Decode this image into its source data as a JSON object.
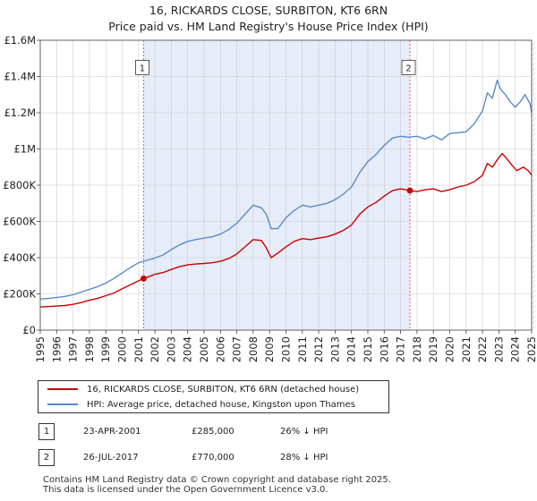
{
  "title": "16, RICKARDS CLOSE, SURBITON, KT6 6RN",
  "subtitle": "Price paid vs. HM Land Registry's House Price Index (HPI)",
  "chart_data": {
    "type": "line",
    "xlim": [
      1995,
      2025
    ],
    "ylim": [
      0,
      1600000
    ],
    "x_ticks": [
      "1995",
      "1996",
      "1997",
      "1998",
      "1999",
      "2000",
      "2001",
      "2002",
      "2003",
      "2004",
      "2005",
      "2006",
      "2007",
      "2008",
      "2009",
      "2010",
      "2011",
      "2012",
      "2013",
      "2014",
      "2015",
      "2016",
      "2017",
      "2018",
      "2019",
      "2020",
      "2021",
      "2022",
      "2023",
      "2024",
      "2025"
    ],
    "y_ticks": [
      {
        "value": 0,
        "label": "£0"
      },
      {
        "value": 200000,
        "label": "£200K"
      },
      {
        "value": 400000,
        "label": "£400K"
      },
      {
        "value": 600000,
        "label": "£600K"
      },
      {
        "value": 800000,
        "label": "£800K"
      },
      {
        "value": 1000000,
        "label": "£1M"
      },
      {
        "value": 1200000,
        "label": "£1.2M"
      },
      {
        "value": 1400000,
        "label": "£1.4M"
      },
      {
        "value": 1600000,
        "label": "£1.6M"
      }
    ],
    "grid": true,
    "shaded_ranges": [
      [
        2001.31,
        2017.57
      ]
    ],
    "future_hatch_from": 2025.0,
    "series": [
      {
        "name": "16, RICKARDS CLOSE, SURBITON, KT6 6RN (detached house)",
        "color": "#cc0000",
        "x": [
          1995.0,
          1995.5,
          1996.0,
          1996.5,
          1997.0,
          1997.5,
          1998.0,
          1998.5,
          1999.0,
          1999.5,
          2000.0,
          2000.5,
          2001.0,
          2001.31,
          2001.7,
          2002.0,
          2002.5,
          2003.0,
          2003.5,
          2004.0,
          2004.5,
          2005.0,
          2005.5,
          2006.0,
          2006.5,
          2007.0,
          2007.5,
          2008.0,
          2008.5,
          2008.8,
          2009.1,
          2009.5,
          2010.0,
          2010.5,
          2011.0,
          2011.5,
          2012.0,
          2012.5,
          2013.0,
          2013.5,
          2014.0,
          2014.5,
          2015.0,
          2015.5,
          2016.0,
          2016.5,
          2017.0,
          2017.3,
          2017.57,
          2018.0,
          2018.5,
          2019.0,
          2019.5,
          2020.0,
          2020.5,
          2021.0,
          2021.5,
          2022.0,
          2022.3,
          2022.6,
          2022.9,
          2023.2,
          2023.5,
          2023.8,
          2024.1,
          2024.5,
          2024.8,
          2025.0
        ],
        "values": [
          128000,
          130000,
          133000,
          136000,
          142000,
          152000,
          165000,
          175000,
          190000,
          205000,
          228000,
          250000,
          272000,
          285000,
          298000,
          308000,
          318000,
          335000,
          350000,
          360000,
          365000,
          368000,
          372000,
          380000,
          395000,
          420000,
          460000,
          500000,
          495000,
          455000,
          400000,
          425000,
          460000,
          490000,
          505000,
          500000,
          508000,
          515000,
          530000,
          550000,
          580000,
          640000,
          680000,
          705000,
          740000,
          770000,
          780000,
          775000,
          770000,
          765000,
          775000,
          780000,
          765000,
          775000,
          790000,
          800000,
          820000,
          855000,
          920000,
          900000,
          940000,
          975000,
          945000,
          910000,
          880000,
          900000,
          880000,
          855000
        ]
      },
      {
        "name": "HPI: Average price, detached house, Kingston upon Thames",
        "color": "#5b8ac9",
        "x": [
          1995.0,
          1995.5,
          1996.0,
          1996.5,
          1997.0,
          1997.5,
          1998.0,
          1998.5,
          1999.0,
          1999.5,
          2000.0,
          2000.5,
          2001.0,
          2001.5,
          2002.0,
          2002.5,
          2003.0,
          2003.5,
          2004.0,
          2004.5,
          2005.0,
          2005.5,
          2006.0,
          2006.5,
          2007.0,
          2007.5,
          2008.0,
          2008.5,
          2008.8,
          2009.1,
          2009.5,
          2010.0,
          2010.5,
          2011.0,
          2011.5,
          2012.0,
          2012.5,
          2013.0,
          2013.5,
          2014.0,
          2014.5,
          2015.0,
          2015.5,
          2016.0,
          2016.5,
          2017.0,
          2017.5,
          2018.0,
          2018.5,
          2019.0,
          2019.5,
          2020.0,
          2020.5,
          2021.0,
          2021.5,
          2022.0,
          2022.3,
          2022.6,
          2022.9,
          2023.1,
          2023.4,
          2023.7,
          2024.0,
          2024.3,
          2024.6,
          2024.9,
          2025.0
        ],
        "values": [
          172000,
          175000,
          180000,
          186000,
          195000,
          210000,
          225000,
          240000,
          260000,
          285000,
          315000,
          345000,
          372000,
          385000,
          398000,
          415000,
          445000,
          470000,
          490000,
          500000,
          508000,
          515000,
          530000,
          555000,
          590000,
          640000,
          690000,
          675000,
          640000,
          560000,
          560000,
          620000,
          660000,
          690000,
          680000,
          690000,
          700000,
          720000,
          750000,
          790000,
          870000,
          930000,
          970000,
          1020000,
          1060000,
          1070000,
          1065000,
          1070000,
          1055000,
          1075000,
          1050000,
          1085000,
          1090000,
          1095000,
          1140000,
          1210000,
          1310000,
          1280000,
          1380000,
          1330000,
          1300000,
          1260000,
          1230000,
          1260000,
          1300000,
          1250000,
          1200000
        ]
      }
    ],
    "transactions": [
      {
        "marker": "1",
        "x": 2001.31,
        "value": 285000,
        "date": "23-APR-2001",
        "price": "£285,000",
        "hpi_diff": "26% ↓ HPI"
      },
      {
        "marker": "2",
        "x": 2017.57,
        "value": 770000,
        "date": "26-JUL-2017",
        "price": "£770,000",
        "hpi_diff": "28% ↓ HPI"
      }
    ]
  },
  "legend": {
    "property_label": "16, RICKARDS CLOSE, SURBITON, KT6 6RN (detached house)",
    "hpi_label": "HPI: Average price, detached house, Kingston upon Thames"
  },
  "footer": {
    "line1": "Contains HM Land Registry data © Crown copyright and database right 2025.",
    "line2": "This data is licensed under the Open Government Licence v3.0."
  },
  "colors": {
    "property": "#cc0000",
    "hpi": "#5b8ac9",
    "shade": "#e6ecf8",
    "grid": "#cccccc"
  }
}
